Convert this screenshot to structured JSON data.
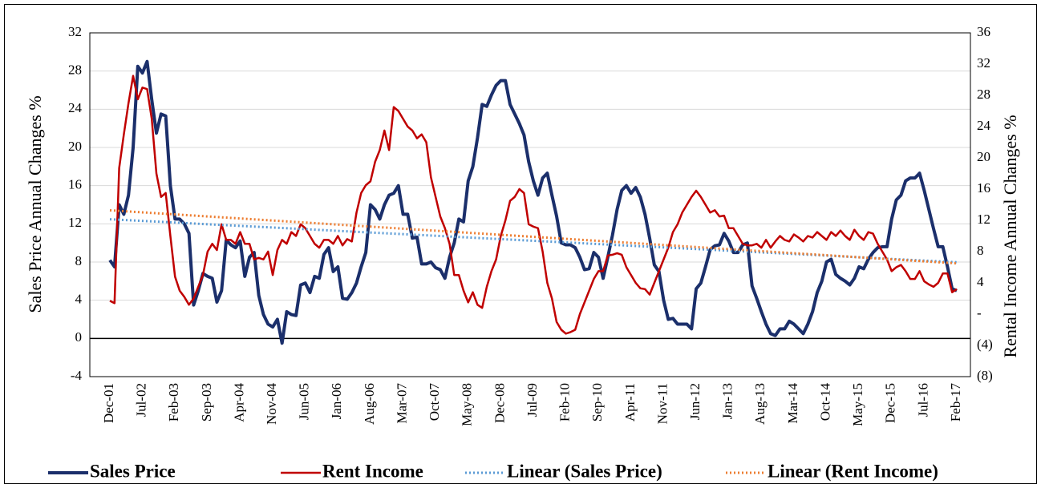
{
  "chart_data": {
    "type": "line",
    "y_label": "Sales Price Annual Changes %",
    "y2_label": "Rental Income Annual Changes %",
    "categories": [
      "Dec-01",
      null,
      null,
      null,
      null,
      null,
      null,
      "Jul-02",
      null,
      null,
      null,
      null,
      null,
      null,
      "Feb-03",
      null,
      null,
      null,
      null,
      null,
      null,
      "Sep-03",
      null,
      null,
      null,
      null,
      null,
      null,
      "Apr-04",
      null,
      null,
      null,
      null,
      null,
      null,
      "Nov-04",
      null,
      null,
      null,
      null,
      null,
      null,
      "Jun-05",
      null,
      null,
      null,
      null,
      null,
      null,
      "Jan-06",
      null,
      null,
      null,
      null,
      null,
      null,
      "Aug-06",
      null,
      null,
      null,
      null,
      null,
      null,
      "Mar-07",
      null,
      null,
      null,
      null,
      null,
      null,
      "Oct-07",
      null,
      null,
      null,
      null,
      null,
      null,
      "May-08",
      null,
      null,
      null,
      null,
      null,
      null,
      "Dec-08",
      null,
      null,
      null,
      null,
      null,
      null,
      "Jul-09",
      null,
      null,
      null,
      null,
      null,
      null,
      "Feb-10",
      null,
      null,
      null,
      null,
      null,
      null,
      "Sep-10",
      null,
      null,
      null,
      null,
      null,
      null,
      "Apr-11",
      null,
      null,
      null,
      null,
      null,
      null,
      "Nov-11",
      null,
      null,
      null,
      null,
      null,
      null,
      "Jun-12",
      null,
      null,
      null,
      null,
      null,
      null,
      "Jan-13",
      null,
      null,
      null,
      null,
      null,
      null,
      "Aug-13",
      null,
      null,
      null,
      null,
      null,
      null,
      "Mar-14",
      null,
      null,
      null,
      null,
      null,
      null,
      "Oct-14",
      null,
      null,
      null,
      null,
      null,
      null,
      "May-15",
      null,
      null,
      null,
      null,
      null,
      null,
      "Dec-15",
      null,
      null,
      null,
      null,
      null,
      null,
      "Jul-16",
      null,
      null,
      null,
      null,
      null,
      null,
      "Feb-17"
    ],
    "series": [
      {
        "name": "Sales Price",
        "color": "#1b2f6b",
        "width": 4,
        "values": [
          8.2,
          7.5,
          14,
          13,
          15,
          20,
          28.5,
          27.8,
          29,
          25,
          21.5,
          23.5,
          23.3,
          16,
          12.5,
          12.5,
          12,
          11,
          3.5,
          5,
          6.8,
          6.5,
          6.3,
          3.8,
          5,
          10.3,
          9.8,
          9.5,
          10.2,
          6.5,
          8.5,
          9,
          4.5,
          2.5,
          1.5,
          1.2,
          2,
          -0.5,
          2.8,
          2.5,
          2.4,
          5.6,
          5.8,
          4.8,
          6.5,
          6.3,
          8.8,
          9.5,
          7,
          7.5,
          4.2,
          4.1,
          4.8,
          5.8,
          7.5,
          9,
          14,
          13.5,
          12.5,
          14,
          15,
          15.2,
          16,
          13,
          13,
          10.5,
          10.6,
          7.8,
          7.8,
          8,
          7.4,
          7.2,
          6.3,
          8.5,
          10,
          12.5,
          12.2,
          16.5,
          18,
          21,
          24.5,
          24.3,
          25.5,
          26.5,
          27,
          27,
          24.5,
          23.5,
          22.5,
          21.3,
          18.5,
          16.5,
          15,
          16.8,
          17.3,
          15,
          12.8,
          10,
          9.8,
          9.8,
          9.5,
          8.5,
          7.2,
          7.3,
          9,
          8.5,
          6.3,
          8.5,
          10.8,
          13.5,
          15.5,
          16,
          15.2,
          15.8,
          14.8,
          13,
          10.5,
          7.7,
          7,
          4,
          2,
          2.1,
          1.5,
          1.5,
          1.5,
          1,
          5.2,
          5.8,
          7.5,
          9.3,
          9.7,
          9.8,
          11,
          10.2,
          9,
          9,
          9.8,
          10,
          5.5,
          4.2,
          2.8,
          1.5,
          0.5,
          0.3,
          1,
          1,
          1.8,
          1.5,
          1,
          0.5,
          1.5,
          2.8,
          4.8,
          6,
          8,
          8.3,
          6.7,
          6.3,
          6,
          5.6,
          6.3,
          7.5,
          7.3,
          8.3,
          9,
          9.5,
          9.6,
          9.6,
          12.5,
          14.5,
          15,
          16.5,
          16.8,
          16.8,
          17.3,
          15.5,
          13.5,
          11.5,
          9.6,
          9.6,
          7.5,
          5.2,
          5
        ]
      },
      {
        "name": "Rent Income",
        "color": "#c00000",
        "width": 2.5,
        "axis": "y2",
        "values": [
          1.7,
          1.4,
          18.7,
          23,
          27,
          30.5,
          27.5,
          29,
          28.8,
          25,
          18,
          15,
          15.5,
          10,
          4.8,
          3,
          2.2,
          1.2,
          2,
          3.5,
          5,
          8,
          9,
          8.2,
          11.5,
          9.5,
          9.5,
          9,
          10.5,
          9,
          9,
          7,
          7.2,
          7,
          8,
          5,
          8.2,
          9.5,
          9,
          10.5,
          10,
          11.5,
          11,
          10,
          9,
          8.5,
          9.5,
          9.5,
          9,
          10,
          8.8,
          9.6,
          9.3,
          13,
          15.5,
          16.5,
          17,
          19.5,
          21,
          23.5,
          21,
          26.5,
          26,
          25,
          24,
          23.5,
          22.5,
          23,
          22,
          17.5,
          15,
          12.5,
          11,
          9,
          5,
          5,
          3,
          1.5,
          2.8,
          1.2,
          0.8,
          3.5,
          5.5,
          7,
          10,
          12,
          14.5,
          15,
          16,
          15.5,
          11.5,
          11.2,
          11,
          8,
          4,
          2,
          -1,
          -2,
          -2.5,
          -2.3,
          -2,
          0,
          1.5,
          3,
          4.5,
          5.5,
          5.5,
          7.5,
          7.6,
          7.8,
          7.6,
          6,
          5,
          4,
          3.3,
          3.2,
          2.5,
          4,
          5.5,
          7,
          8.5,
          10.5,
          11.5,
          13,
          14,
          15,
          15.8,
          15,
          14,
          13,
          13.3,
          12.5,
          12.6,
          11,
          11,
          10,
          9,
          8.8,
          8.8,
          9,
          8.5,
          9.5,
          8.5,
          9.3,
          10,
          9.5,
          9.3,
          10.2,
          9.8,
          9.3,
          10,
          9.8,
          10.5,
          10,
          9.5,
          10.5,
          10,
          10.7,
          10,
          9.5,
          10.8,
          10,
          9.5,
          10.5,
          10.3,
          9,
          8,
          7,
          5.5,
          6,
          6.3,
          5.5,
          4.5,
          4.5,
          5.5,
          4.2,
          3.8,
          3.5,
          4,
          5.2,
          5.2,
          2.8,
          3.2
        ]
      },
      {
        "name": "Linear (Sales Price)",
        "color": "#5b9bd5",
        "width": 3,
        "dash": "dot",
        "trend_of": 0
      },
      {
        "name": "Linear (Rent Income)",
        "color": "#ed7d31",
        "width": 3,
        "dash": "dot",
        "trend_of": 1,
        "axis": "y2"
      }
    ],
    "ylim": [
      -4,
      32
    ],
    "yticks": [
      -4,
      0,
      4,
      8,
      12,
      16,
      20,
      24,
      28,
      32
    ],
    "y2lim": [
      -8,
      36
    ],
    "y2ticks": [
      {
        "value": -8,
        "label": "(8)"
      },
      {
        "value": -4,
        "label": "(4)"
      },
      {
        "value": 0,
        "label": "-"
      },
      4,
      8,
      12,
      16,
      20,
      24,
      28,
      32,
      36
    ],
    "grid": true,
    "legend": "bottom"
  }
}
